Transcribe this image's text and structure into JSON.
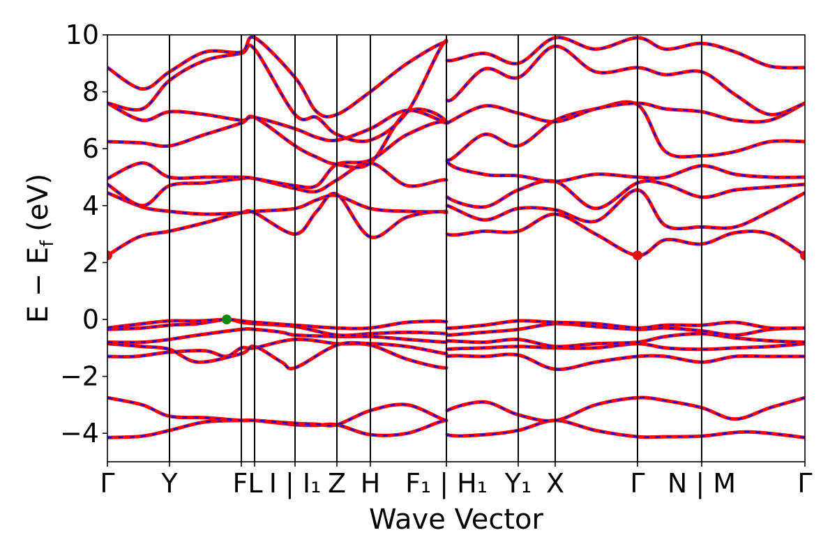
{
  "chart_data": {
    "type": "line",
    "xlabel": "Wave Vector",
    "ylabel": "E − E_f (eV)",
    "ylabel_parts": {
      "main": "E − E",
      "sub": "f",
      "tail": " (eV)"
    },
    "ylim": [
      -5,
      10
    ],
    "yticks": [
      -4,
      -2,
      0,
      2,
      4,
      6,
      8,
      10
    ],
    "ytick_labels": [
      "−4",
      "−2",
      "0",
      "2",
      "4",
      "6",
      "8",
      "10"
    ],
    "xlim": [
      0,
      1
    ],
    "kpoints": [
      {
        "pos": 0.0,
        "label": "Γ"
      },
      {
        "pos": 0.089,
        "label": "Y"
      },
      {
        "pos": 0.192,
        "label": "F"
      },
      {
        "pos": 0.211,
        "label": "L"
      },
      {
        "pos": 0.269,
        "label": "I | I₁"
      },
      {
        "pos": 0.329,
        "label": "Z"
      },
      {
        "pos": 0.377,
        "label": "H"
      },
      {
        "pos": 0.486,
        "label": "F₁ | H₁"
      },
      {
        "pos": 0.589,
        "label": "Y₁"
      },
      {
        "pos": 0.642,
        "label": "X"
      },
      {
        "pos": 0.76,
        "label": "Γ"
      },
      {
        "pos": 0.852,
        "label": "N | M"
      },
      {
        "pos": 1.0,
        "label": "Γ"
      }
    ],
    "xtick_labels": [
      {
        "pos": 0.0,
        "text": "Γ"
      },
      {
        "pos": 0.089,
        "text": "Y"
      },
      {
        "pos": 0.201,
        "text": "FL"
      },
      {
        "pos": 0.269,
        "text": "I | I₁"
      },
      {
        "pos": 0.329,
        "text": "Z"
      },
      {
        "pos": 0.377,
        "text": "H"
      },
      {
        "pos": 0.486,
        "text": "F₁ | H₁"
      },
      {
        "pos": 0.589,
        "text": "Y₁"
      },
      {
        "pos": 0.642,
        "text": "X"
      },
      {
        "pos": 0.76,
        "text": "Γ"
      },
      {
        "pos": 0.852,
        "text": "N | M"
      },
      {
        "pos": 1.0,
        "text": "Γ"
      }
    ],
    "series_style": {
      "solid": "#ff0000",
      "dashed": "#0000ff"
    },
    "series": [
      {
        "x": [
          0,
          0.05,
          0.089,
          0.14,
          0.192,
          0.211,
          0.269,
          0.3,
          0.329,
          0.377,
          0.43,
          0.486,
          0.487,
          0.54,
          0.589,
          0.642,
          0.7,
          0.76,
          0.8,
          0.852,
          0.92,
          1.0
        ],
        "y": [
          -4.15,
          -4.1,
          -3.9,
          -3.6,
          -3.55,
          -3.55,
          -3.7,
          -3.72,
          -3.7,
          -4.05,
          -4.0,
          -3.55,
          -4.05,
          -4.05,
          -3.9,
          -3.55,
          -3.9,
          -4.12,
          -4.12,
          -4.1,
          -3.95,
          -4.15
        ]
      },
      {
        "x": [
          0,
          0.05,
          0.089,
          0.14,
          0.192,
          0.211,
          0.269,
          0.3,
          0.329,
          0.377,
          0.43,
          0.486,
          0.487,
          0.54,
          0.589,
          0.642,
          0.7,
          0.76,
          0.8,
          0.852,
          0.9,
          0.95,
          1.0
        ],
        "y": [
          -2.75,
          -3.0,
          -3.4,
          -3.45,
          -3.55,
          -3.55,
          -3.65,
          -3.68,
          -3.7,
          -3.2,
          -3.0,
          -3.55,
          -3.2,
          -2.9,
          -3.35,
          -3.55,
          -3.0,
          -2.75,
          -2.85,
          -3.1,
          -3.5,
          -3.1,
          -2.75
        ]
      },
      {
        "x": [
          0,
          0.04,
          0.089,
          0.14,
          0.17,
          0.192,
          0.211,
          0.269,
          0.329,
          0.377,
          0.43,
          0.486,
          0.487,
          0.54,
          0.589,
          0.642,
          0.7,
          0.76,
          0.8,
          0.852,
          0.9,
          0.95,
          1.0
        ],
        "y": [
          -1.3,
          -1.3,
          -1.15,
          -1.1,
          -1.3,
          -1.0,
          -1.0,
          -0.7,
          -0.85,
          -0.9,
          -1.4,
          -1.7,
          -1.3,
          -1.3,
          -1.25,
          -1.75,
          -1.5,
          -1.3,
          -1.3,
          -1.5,
          -1.3,
          -1.3,
          -1.3
        ]
      },
      {
        "x": [
          0,
          0.05,
          0.089,
          0.13,
          0.192,
          0.211,
          0.25,
          0.269,
          0.329,
          0.377,
          0.43,
          0.486,
          0.487,
          0.54,
          0.589,
          0.642,
          0.7,
          0.76,
          0.8,
          0.852,
          0.9,
          0.95,
          1.0
        ],
        "y": [
          -0.85,
          -0.95,
          -1.05,
          -1.5,
          -1.2,
          -0.95,
          -1.5,
          -1.7,
          -0.9,
          -0.85,
          -0.95,
          -1.2,
          -1.05,
          -1.0,
          -0.95,
          -1.0,
          -1.0,
          -0.85,
          -1.0,
          -1.05,
          -1.0,
          -0.95,
          -0.85
        ]
      },
      {
        "x": [
          0,
          0.05,
          0.089,
          0.13,
          0.192,
          0.211,
          0.25,
          0.269,
          0.329,
          0.377,
          0.43,
          0.486,
          0.487,
          0.54,
          0.589,
          0.642,
          0.7,
          0.76,
          0.8,
          0.852,
          0.9,
          0.95,
          1.0
        ],
        "y": [
          -0.8,
          -0.8,
          -0.7,
          -0.55,
          -0.35,
          -0.35,
          -0.45,
          -0.55,
          -0.6,
          -0.6,
          -0.7,
          -0.8,
          -0.75,
          -0.8,
          -0.7,
          -0.95,
          -0.85,
          -0.8,
          -0.6,
          -0.5,
          -0.65,
          -0.75,
          -0.8
        ]
      },
      {
        "x": [
          0,
          0.05,
          0.089,
          0.13,
          0.171,
          0.192,
          0.211,
          0.269,
          0.329,
          0.377,
          0.43,
          0.486,
          0.487,
          0.54,
          0.589,
          0.642,
          0.7,
          0.76,
          0.8,
          0.852,
          0.9,
          0.95,
          1.0
        ],
        "y": [
          -0.35,
          -0.3,
          -0.2,
          -0.15,
          0.0,
          -0.1,
          -0.15,
          -0.25,
          -0.55,
          -0.5,
          -0.45,
          -0.5,
          -0.55,
          -0.45,
          -0.35,
          -0.15,
          -0.25,
          -0.35,
          -0.3,
          -0.4,
          -0.55,
          -0.35,
          -0.3
        ]
      },
      {
        "x": [
          0,
          0.05,
          0.089,
          0.13,
          0.171,
          0.192,
          0.211,
          0.269,
          0.329,
          0.377,
          0.43,
          0.486,
          0.487,
          0.54,
          0.589,
          0.642,
          0.7,
          0.76,
          0.8,
          0.852,
          0.9,
          0.95,
          1.0
        ],
        "y": [
          -0.3,
          -0.15,
          -0.05,
          -0.05,
          0.0,
          -0.05,
          -0.1,
          -0.2,
          -0.3,
          -0.3,
          -0.1,
          -0.08,
          -0.3,
          -0.2,
          -0.05,
          -0.1,
          -0.15,
          -0.3,
          -0.2,
          -0.2,
          -0.1,
          -0.3,
          -0.3
        ]
      },
      {
        "x": [
          0,
          0.045,
          0.089,
          0.14,
          0.192,
          0.211,
          0.269,
          0.3,
          0.329,
          0.377,
          0.43,
          0.486,
          0.487,
          0.54,
          0.589,
          0.642,
          0.7,
          0.76,
          0.8,
          0.852,
          0.9,
          0.95,
          1.0
        ],
        "y": [
          2.25,
          2.9,
          3.1,
          3.4,
          3.75,
          3.75,
          3.0,
          3.8,
          4.4,
          2.9,
          3.6,
          3.75,
          3.0,
          3.1,
          3.1,
          3.7,
          3.0,
          2.25,
          2.8,
          2.65,
          3.05,
          3.0,
          2.25
        ]
      },
      {
        "x": [
          0,
          0.05,
          0.089,
          0.14,
          0.192,
          0.211,
          0.269,
          0.3,
          0.329,
          0.377,
          0.43,
          0.486,
          0.487,
          0.54,
          0.589,
          0.642,
          0.7,
          0.76,
          0.8,
          0.852,
          0.9,
          0.95,
          1.0
        ],
        "y": [
          4.45,
          3.95,
          3.8,
          3.7,
          3.75,
          3.8,
          3.9,
          4.2,
          4.35,
          3.9,
          3.8,
          3.8,
          4.0,
          3.5,
          3.9,
          3.85,
          3.45,
          4.55,
          3.3,
          3.25,
          3.25,
          3.8,
          4.45
        ]
      },
      {
        "x": [
          0,
          0.05,
          0.089,
          0.14,
          0.192,
          0.211,
          0.269,
          0.3,
          0.329,
          0.377,
          0.43,
          0.486,
          0.487,
          0.54,
          0.589,
          0.642,
          0.7,
          0.76,
          0.8,
          0.852,
          0.9,
          0.95,
          1.0
        ],
        "y": [
          4.75,
          4.0,
          4.7,
          4.8,
          4.95,
          4.95,
          4.6,
          4.5,
          4.9,
          5.5,
          4.7,
          4.9,
          4.3,
          3.95,
          4.55,
          4.85,
          3.9,
          4.8,
          4.75,
          4.3,
          4.55,
          4.65,
          4.75
        ]
      },
      {
        "x": [
          0,
          0.05,
          0.089,
          0.14,
          0.192,
          0.211,
          0.269,
          0.3,
          0.329,
          0.377,
          0.43,
          0.486,
          0.487,
          0.54,
          0.589,
          0.642,
          0.7,
          0.76,
          0.8,
          0.852,
          0.9,
          0.95,
          1.0
        ],
        "y": [
          4.95,
          5.5,
          5.0,
          5.0,
          5.0,
          4.95,
          4.7,
          4.7,
          5.45,
          5.6,
          6.5,
          6.9,
          5.55,
          5.1,
          5.05,
          4.85,
          5.1,
          5.0,
          5.0,
          5.4,
          5.1,
          5.0,
          5.0
        ]
      },
      {
        "x": [
          0,
          0.05,
          0.089,
          0.14,
          0.192,
          0.211,
          0.269,
          0.3,
          0.329,
          0.377,
          0.43,
          0.486,
          0.487,
          0.54,
          0.589,
          0.642,
          0.7,
          0.76,
          0.8,
          0.852,
          0.9,
          0.95,
          1.0
        ],
        "y": [
          6.25,
          6.2,
          6.1,
          6.5,
          6.9,
          7.1,
          6.1,
          5.7,
          5.45,
          5.5,
          7.3,
          6.95,
          5.6,
          6.5,
          6.1,
          7.0,
          7.4,
          7.55,
          5.9,
          5.75,
          5.9,
          6.25,
          6.25
        ]
      },
      {
        "x": [
          0,
          0.05,
          0.089,
          0.14,
          0.192,
          0.211,
          0.269,
          0.3,
          0.329,
          0.377,
          0.43,
          0.486,
          0.487,
          0.54,
          0.589,
          0.642,
          0.7,
          0.76,
          0.8,
          0.852,
          0.9,
          0.95,
          1.0
        ],
        "y": [
          7.6,
          7.0,
          7.3,
          7.2,
          7.0,
          7.1,
          6.7,
          6.4,
          6.3,
          6.7,
          7.35,
          6.9,
          6.9,
          7.5,
          7.25,
          6.95,
          7.4,
          7.6,
          7.4,
          7.3,
          7.0,
          7.0,
          7.6
        ]
      },
      {
        "x": [
          0,
          0.05,
          0.089,
          0.14,
          0.192,
          0.211,
          0.269,
          0.3,
          0.329,
          0.377,
          0.43,
          0.486,
          0.487,
          0.54,
          0.589,
          0.642,
          0.7,
          0.76,
          0.8,
          0.852,
          0.9,
          0.95,
          1.0
        ],
        "y": [
          7.6,
          7.4,
          8.4,
          9.1,
          9.35,
          9.5,
          7.2,
          7.1,
          6.5,
          6.3,
          7.3,
          9.8,
          7.7,
          8.8,
          8.5,
          9.6,
          8.7,
          8.85,
          8.6,
          8.7,
          7.9,
          7.2,
          7.6
        ]
      },
      {
        "x": [
          0,
          0.05,
          0.089,
          0.14,
          0.192,
          0.211,
          0.269,
          0.3,
          0.329,
          0.377,
          0.43,
          0.486,
          0.487,
          0.54,
          0.589,
          0.642,
          0.7,
          0.76,
          0.8,
          0.852,
          0.9,
          0.95,
          1.0
        ],
        "y": [
          8.85,
          8.1,
          8.7,
          9.4,
          9.4,
          9.9,
          8.5,
          7.3,
          7.2,
          8.0,
          9.0,
          9.75,
          9.1,
          9.35,
          9.0,
          9.9,
          9.5,
          9.9,
          9.5,
          9.7,
          9.4,
          8.9,
          8.85
        ]
      }
    ],
    "markers": [
      {
        "x": 0.0,
        "y": 2.25,
        "color": "#dd1111"
      },
      {
        "x": 0.76,
        "y": 2.25,
        "color": "#dd1111"
      },
      {
        "x": 1.0,
        "y": 2.25,
        "color": "#dd1111"
      },
      {
        "x": 0.171,
        "y": 0.0,
        "color": "#118811"
      }
    ]
  }
}
